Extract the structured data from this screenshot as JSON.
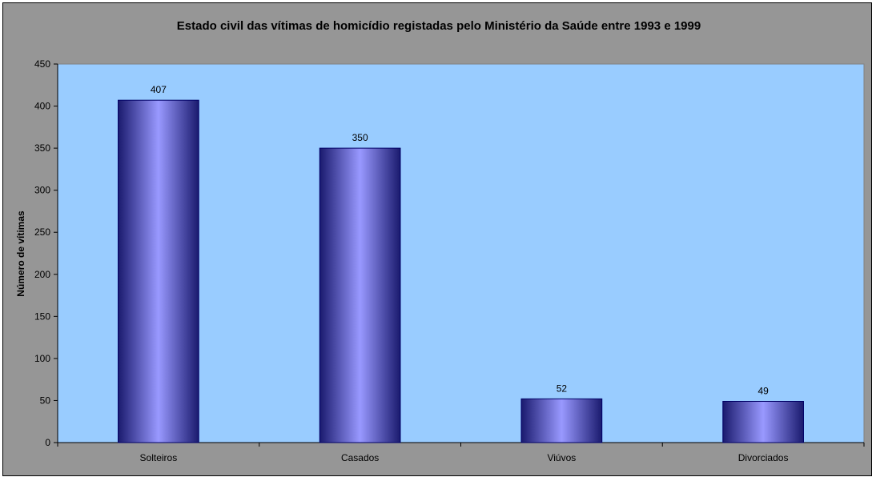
{
  "chart_data": {
    "type": "bar",
    "title": "Estado civil das vítimas de homicídio registadas pelo Ministério da Saúde entre 1993 e 1999",
    "xlabel": "",
    "ylabel": "Número de vítimas",
    "categories": [
      "Solteiros",
      "Casados",
      "Viúvos",
      "Divorciados"
    ],
    "values": [
      407,
      350,
      52,
      49
    ],
    "data_labels": [
      "407",
      "350",
      "52",
      "49"
    ],
    "ylim": [
      0,
      450
    ],
    "yticks": [
      0,
      50,
      100,
      150,
      200,
      250,
      300,
      350,
      400,
      450
    ],
    "ytick_labels": [
      "0",
      "50",
      "100",
      "150",
      "200",
      "250",
      "300",
      "350",
      "400",
      "450"
    ],
    "grid": false,
    "legend": "none",
    "colors": {
      "chart_area": "#969696",
      "plot_area": "#99CCFF",
      "bar_edge": "#000066",
      "bar_dark": "#1a1a6e",
      "bar_light": "#9999FF",
      "text": "#000000"
    }
  }
}
